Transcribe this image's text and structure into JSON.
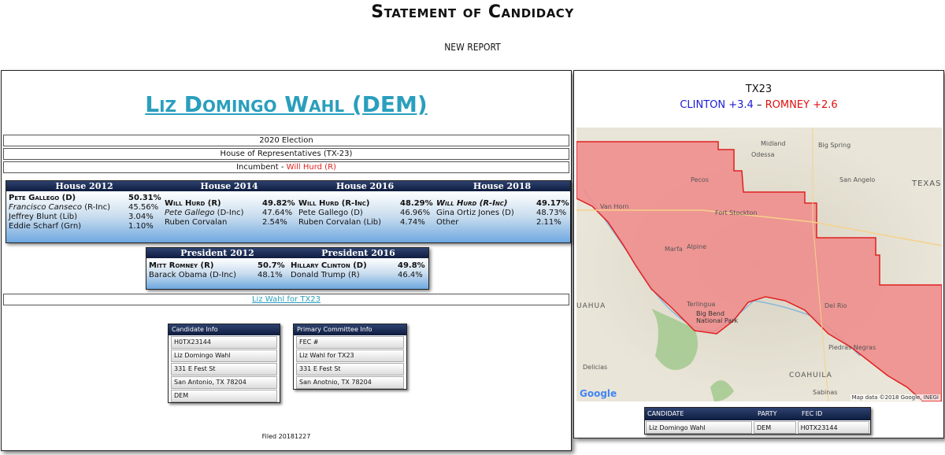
{
  "page": {
    "title": "Statement of Candidacy",
    "subtitle": "NEW REPORT"
  },
  "candidate": {
    "name": "Liz Domingo Wahl (DEM)",
    "election": "2020 Election",
    "office": "House of Representatives (TX-23)",
    "incumbent_label": "Incumbent -",
    "incumbent_name": "Will Hurd (R)",
    "committee_link": "Liz Wahl for TX23",
    "filed": "Filed 20181227"
  },
  "house_results": [
    {
      "title": "House 2012",
      "rows": [
        {
          "name": "Pete Gallego (D)",
          "pct": "50.31%",
          "winner": true,
          "italic": false
        },
        {
          "name_italic": "Francisco Canseco",
          "name_rest": " (R-Inc)",
          "pct": "45.56%"
        },
        {
          "name": "Jeffrey Blunt (Lib)",
          "pct": "3.04%"
        },
        {
          "name": "Eddie Scharf (Grn)",
          "pct": "1.10%"
        }
      ]
    },
    {
      "title": "House 2014",
      "rows": [
        {
          "name": "Will Hurd (R)",
          "pct": "49.82%",
          "winner": true
        },
        {
          "name_italic": "Pete Gallego",
          "name_rest": " (D-Inc)",
          "pct": "47.64%"
        },
        {
          "name": "Ruben Corvalan",
          "pct": "2.54%"
        }
      ]
    },
    {
      "title": "House 2016",
      "rows": [
        {
          "name": "Will Hurd (R-Inc)",
          "pct": "48.29%",
          "winner": true
        },
        {
          "name": "Pete Gallego (D)",
          "pct": "46.96%"
        },
        {
          "name": "Ruben Corvalan (Lib)",
          "pct": "4.74%"
        }
      ]
    },
    {
      "title": "House 2018",
      "rows": [
        {
          "name": "Will Hurd (R-Inc)",
          "pct": "49.17%",
          "winner": true,
          "italic": true
        },
        {
          "name": "Gina Ortiz Jones (D)",
          "pct": "48.73%"
        },
        {
          "name": "Other",
          "pct": "2.11%"
        }
      ]
    }
  ],
  "president_results": [
    {
      "title": "President 2012",
      "rows": [
        {
          "name": "Mitt Romney (R)",
          "pct": "50.7%",
          "winner": true
        },
        {
          "name": "Barack Obama (D-Inc)",
          "pct": "48.1%"
        }
      ]
    },
    {
      "title": "President 2016",
      "rows": [
        {
          "name": "Hillary Clinton (D)",
          "pct": "49.8%",
          "winner": true
        },
        {
          "name": "Donald Trump (R)",
          "pct": "46.4%"
        }
      ]
    }
  ],
  "candidate_info": {
    "title": "Candidate Info",
    "rows": [
      "H0TX23144",
      "Liz Domingo Wahl",
      "331 E Fest St",
      "San Antonio, TX 78204",
      "DEM"
    ]
  },
  "committee_info": {
    "title": "Primary Committee Info",
    "rows": [
      "FEC #",
      "Liz Wahl for TX23",
      "331 E Fest St",
      "San Anotnio, TX 78204"
    ]
  },
  "district": {
    "name": "TX23",
    "clinton": "CLINTON +3.4",
    "dash": " – ",
    "romney": "ROMNEY +2.6"
  },
  "map": {
    "labels": [
      "Midland",
      "Odessa",
      "Big Spring",
      "San Angelo",
      "TEXAS",
      "Pecos",
      "Van Horn",
      "Fort Stockton",
      "Marfa",
      "Alpine",
      "Big Bend National Park",
      "Del Rio",
      "Piedras Negras",
      "Delicias",
      "COAHUILA",
      "UAHUA",
      "Terlingua",
      "Sabinas"
    ],
    "credit": "Map data ©2018 Google, INEGI",
    "google": "Google",
    "colors": {
      "district_fill": "#f08a8a",
      "district_stroke": "#e02020"
    }
  },
  "summary_table": {
    "headers": [
      "CANDIDATE",
      "PARTY",
      "FEC ID"
    ],
    "row": [
      "Liz Domingo Wahl",
      "DEM",
      "H0TX23144"
    ]
  }
}
